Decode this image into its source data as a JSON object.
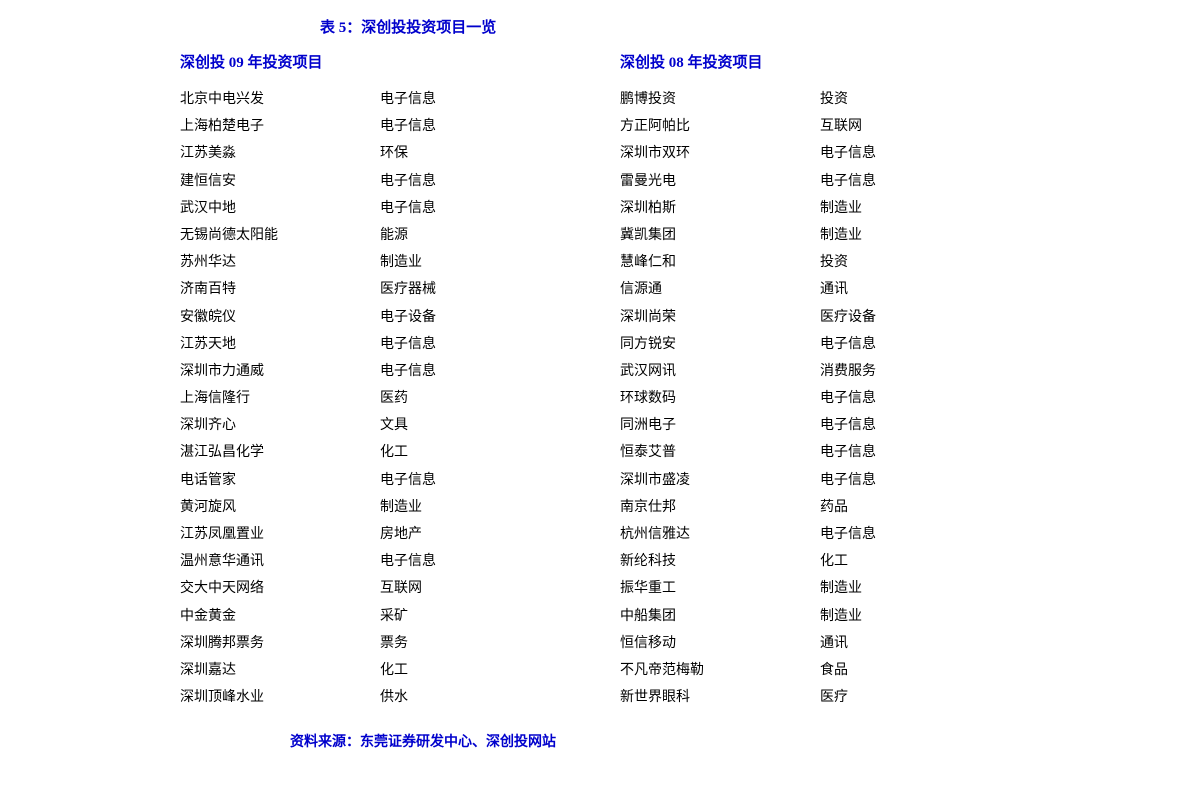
{
  "table": {
    "title": "表 5：深创投投资项目一览",
    "source": "资料来源：东莞证券研发中心、深创投网站",
    "left": {
      "header": "深创投 09 年投资项目",
      "rows": [
        {
          "name": "北京中电兴发",
          "industry": "电子信息"
        },
        {
          "name": "上海柏楚电子",
          "industry": "电子信息"
        },
        {
          "name": "江苏美淼",
          "industry": "环保"
        },
        {
          "name": "建恒信安",
          "industry": "电子信息"
        },
        {
          "name": "武汉中地",
          "industry": "电子信息"
        },
        {
          "name": "无锡尚德太阳能",
          "industry": "能源"
        },
        {
          "name": "苏州华达",
          "industry": "制造业"
        },
        {
          "name": "济南百特",
          "industry": "医疗器械"
        },
        {
          "name": "安徽皖仪",
          "industry": "电子设备"
        },
        {
          "name": "江苏天地",
          "industry": "电子信息"
        },
        {
          "name": "深圳市力通威",
          "industry": "电子信息"
        },
        {
          "name": "上海信隆行",
          "industry": "医药"
        },
        {
          "name": "深圳齐心",
          "industry": "文具"
        },
        {
          "name": "湛江弘昌化学",
          "industry": "化工"
        },
        {
          "name": "电话管家",
          "industry": "电子信息"
        },
        {
          "name": "黄河旋风",
          "industry": "制造业"
        },
        {
          "name": "江苏凤凰置业",
          "industry": "房地产"
        },
        {
          "name": "温州意华通讯",
          "industry": "电子信息"
        },
        {
          "name": "交大中天网络",
          "industry": "互联网"
        },
        {
          "name": "中金黄金",
          "industry": "采矿"
        },
        {
          "name": "深圳腾邦票务",
          "industry": "票务"
        },
        {
          "name": "深圳嘉达",
          "industry": "化工"
        },
        {
          "name": "深圳顶峰水业",
          "industry": "供水"
        }
      ]
    },
    "right": {
      "header": "深创投 08 年投资项目",
      "rows": [
        {
          "name": "鹏博投资",
          "industry": "投资"
        },
        {
          "name": "方正阿帕比",
          "industry": "互联网"
        },
        {
          "name": "深圳市双环",
          "industry": "电子信息"
        },
        {
          "name": "雷曼光电",
          "industry": "电子信息"
        },
        {
          "name": "深圳柏斯",
          "industry": "制造业"
        },
        {
          "name": "冀凯集团",
          "industry": "制造业"
        },
        {
          "name": "慧峰仁和",
          "industry": "投资"
        },
        {
          "name": "信源通",
          "industry": "通讯"
        },
        {
          "name": "深圳尚荣",
          "industry": "医疗设备"
        },
        {
          "name": "同方锐安",
          "industry": "电子信息"
        },
        {
          "name": "武汉网讯",
          "industry": "消费服务"
        },
        {
          "name": "环球数码",
          "industry": "电子信息"
        },
        {
          "name": "同洲电子",
          "industry": "电子信息"
        },
        {
          "name": "恒泰艾普",
          "industry": "电子信息"
        },
        {
          "name": "深圳市盛凌",
          "industry": "电子信息"
        },
        {
          "name": "南京仕邦",
          "industry": "药品"
        },
        {
          "name": "杭州信雅达",
          "industry": "电子信息"
        },
        {
          "name": "新纶科技",
          "industry": "化工"
        },
        {
          "name": "振华重工",
          "industry": "制造业"
        },
        {
          "name": "中船集团",
          "industry": "制造业"
        },
        {
          "name": "恒信移动",
          "industry": "通讯"
        },
        {
          "name": "不凡帝范梅勒",
          "industry": "食品"
        },
        {
          "name": "新世界眼科",
          "industry": "医疗"
        }
      ]
    }
  },
  "colors": {
    "title": "#0000cc",
    "text": "#000000",
    "background": "#ffffff"
  }
}
